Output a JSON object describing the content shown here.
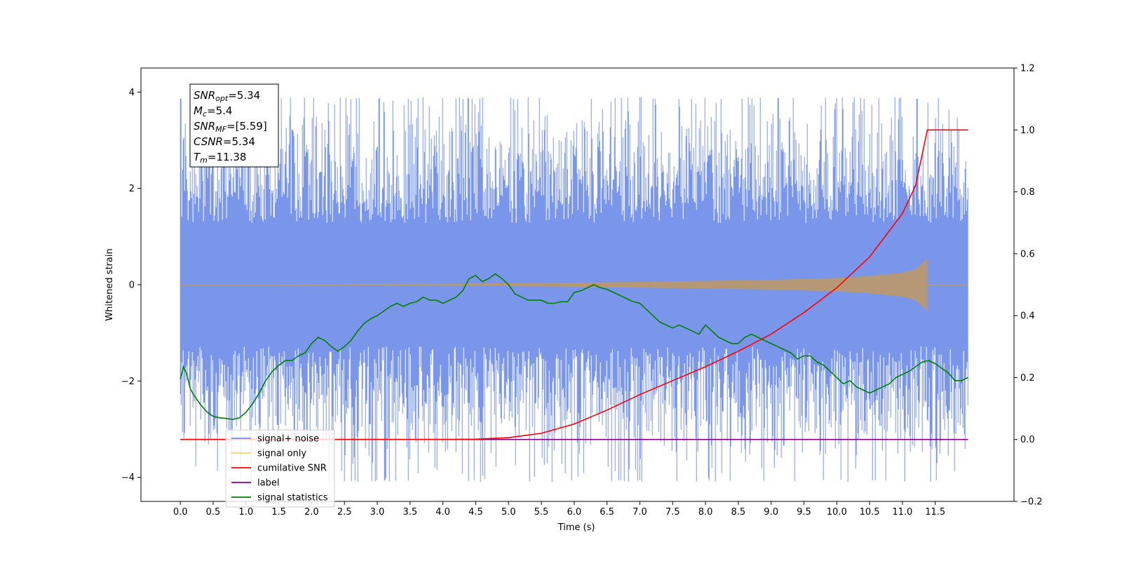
{
  "chart_data": {
    "type": "line",
    "xlabel": "Time (s)",
    "ylabel_left": "Whitened strain",
    "ylabel_right": "",
    "xlim": [
      -0.6,
      12.7
    ],
    "ylim_left": [
      -4.5,
      4.5
    ],
    "ylim_right": [
      -0.2,
      1.2
    ],
    "x_ticks": [
      "0.0",
      "0.5",
      "1.0",
      "1.5",
      "2.0",
      "2.5",
      "3.0",
      "3.5",
      "4.0",
      "4.5",
      "5.0",
      "5.5",
      "6.0",
      "6.5",
      "7.0",
      "7.5",
      "8.0",
      "8.5",
      "9.0",
      "9.5",
      "10.0",
      "10.5",
      "11.0",
      "11.5"
    ],
    "y_ticks_left": [
      "−4",
      "−2",
      "0",
      "2",
      "4"
    ],
    "y_ticks_right": [
      "−0.2",
      "0.0",
      "0.2",
      "0.4",
      "0.6",
      "0.8",
      "1.0",
      "1.2"
    ],
    "grid": false,
    "legend_location": "lower-left",
    "legend": [
      {
        "label": "signal+ noise",
        "color": "#4169e1"
      },
      {
        "label": "signal only",
        "color": "#ffa500"
      },
      {
        "label": "cumilative SNR",
        "color": "#ff0000"
      },
      {
        "label": "label",
        "color": "#800080"
      },
      {
        "label": "signal statistics",
        "color": "#008000"
      }
    ],
    "annotation": [
      {
        "base": "SNR",
        "sub": "opt",
        "value": "=5.34"
      },
      {
        "base": "M",
        "sub": "c",
        "value": "=5.4"
      },
      {
        "base": "SNR",
        "sub": "MF",
        "value": "=[5.59]"
      },
      {
        "base": "CSNR",
        "sub": "",
        "value": "=5.34"
      },
      {
        "base": "T",
        "sub": "m",
        "value": "=11.38"
      }
    ],
    "series": [
      {
        "name": "signal+ noise",
        "axis": "left",
        "color": "#4169e1",
        "description_range": [
          0,
          12.0
        ],
        "typical_band": [
          -1.5,
          1.5
        ],
        "peak_max": 3.9,
        "peak_min": -4.1
      },
      {
        "name": "signal only",
        "axis": "left",
        "color": "#ffa500",
        "x_range": [
          0,
          12.0
        ],
        "merger_time": 11.38,
        "envelope": [
          [
            0,
            0.0
          ],
          [
            4.0,
            0.02
          ],
          [
            6.0,
            0.04
          ],
          [
            8.0,
            0.08
          ],
          [
            9.0,
            0.1
          ],
          [
            10.0,
            0.14
          ],
          [
            10.5,
            0.18
          ],
          [
            11.0,
            0.25
          ],
          [
            11.2,
            0.32
          ],
          [
            11.38,
            0.55
          ],
          [
            11.39,
            0.0
          ],
          [
            12.0,
            0.0
          ]
        ]
      },
      {
        "name": "cumilative SNR",
        "axis": "right",
        "color": "#ff0000",
        "x": [
          0,
          4.0,
          4.5,
          5.0,
          5.5,
          6.0,
          6.5,
          7.0,
          7.5,
          8.0,
          8.5,
          9.0,
          9.5,
          10.0,
          10.5,
          11.0,
          11.2,
          11.38,
          12.0
        ],
        "y": [
          0,
          0,
          0.001,
          0.006,
          0.02,
          0.05,
          0.095,
          0.145,
          0.19,
          0.235,
          0.285,
          0.34,
          0.41,
          0.49,
          0.59,
          0.73,
          0.82,
          1.0,
          1.0
        ]
      },
      {
        "name": "label",
        "axis": "right",
        "color": "#800080",
        "x": [
          0,
          12.0
        ],
        "y": [
          0,
          0
        ]
      },
      {
        "name": "signal statistics",
        "axis": "right",
        "color": "#008000",
        "x": [
          0,
          0.05,
          0.1,
          0.15,
          0.2,
          0.3,
          0.4,
          0.5,
          0.6,
          0.7,
          0.8,
          0.9,
          1.0,
          1.1,
          1.2,
          1.3,
          1.4,
          1.5,
          1.6,
          1.7,
          1.8,
          1.9,
          2.0,
          2.1,
          2.2,
          2.3,
          2.4,
          2.5,
          2.6,
          2.7,
          2.8,
          2.9,
          3.0,
          3.1,
          3.2,
          3.3,
          3.4,
          3.5,
          3.6,
          3.7,
          3.8,
          3.9,
          4.0,
          4.1,
          4.2,
          4.3,
          4.4,
          4.5,
          4.6,
          4.7,
          4.8,
          4.9,
          5.0,
          5.1,
          5.2,
          5.3,
          5.4,
          5.5,
          5.6,
          5.7,
          5.8,
          5.9,
          6.0,
          6.1,
          6.2,
          6.3,
          6.4,
          6.5,
          6.6,
          6.7,
          6.8,
          6.9,
          7.0,
          7.1,
          7.2,
          7.3,
          7.4,
          7.5,
          7.6,
          7.7,
          7.8,
          7.9,
          8.0,
          8.1,
          8.2,
          8.3,
          8.4,
          8.5,
          8.6,
          8.7,
          8.8,
          8.9,
          9.0,
          9.1,
          9.2,
          9.3,
          9.4,
          9.5,
          9.6,
          9.7,
          9.8,
          9.9,
          10.0,
          10.1,
          10.2,
          10.3,
          10.4,
          10.5,
          10.6,
          10.7,
          10.8,
          10.9,
          11.0,
          11.1,
          11.2,
          11.3,
          11.4,
          11.5,
          11.6,
          11.7,
          11.8,
          11.9,
          12.0
        ],
        "y": [
          0.195,
          0.235,
          0.21,
          0.165,
          0.145,
          0.115,
          0.09,
          0.075,
          0.07,
          0.068,
          0.065,
          0.07,
          0.088,
          0.115,
          0.15,
          0.19,
          0.22,
          0.24,
          0.255,
          0.255,
          0.27,
          0.28,
          0.31,
          0.33,
          0.32,
          0.3,
          0.285,
          0.3,
          0.32,
          0.35,
          0.375,
          0.39,
          0.4,
          0.415,
          0.43,
          0.44,
          0.43,
          0.44,
          0.445,
          0.46,
          0.45,
          0.45,
          0.44,
          0.45,
          0.46,
          0.48,
          0.52,
          0.53,
          0.51,
          0.52,
          0.535,
          0.52,
          0.5,
          0.47,
          0.46,
          0.45,
          0.45,
          0.45,
          0.44,
          0.44,
          0.445,
          0.445,
          0.475,
          0.48,
          0.49,
          0.5,
          0.49,
          0.485,
          0.475,
          0.465,
          0.455,
          0.445,
          0.44,
          0.42,
          0.4,
          0.38,
          0.37,
          0.36,
          0.37,
          0.36,
          0.35,
          0.34,
          0.37,
          0.35,
          0.33,
          0.32,
          0.31,
          0.31,
          0.33,
          0.34,
          0.33,
          0.32,
          0.31,
          0.3,
          0.29,
          0.28,
          0.26,
          0.27,
          0.27,
          0.25,
          0.24,
          0.22,
          0.2,
          0.18,
          0.19,
          0.17,
          0.16,
          0.15,
          0.16,
          0.17,
          0.18,
          0.2,
          0.21,
          0.22,
          0.235,
          0.25,
          0.255,
          0.245,
          0.23,
          0.215,
          0.19,
          0.19,
          0.2
        ]
      }
    ]
  }
}
